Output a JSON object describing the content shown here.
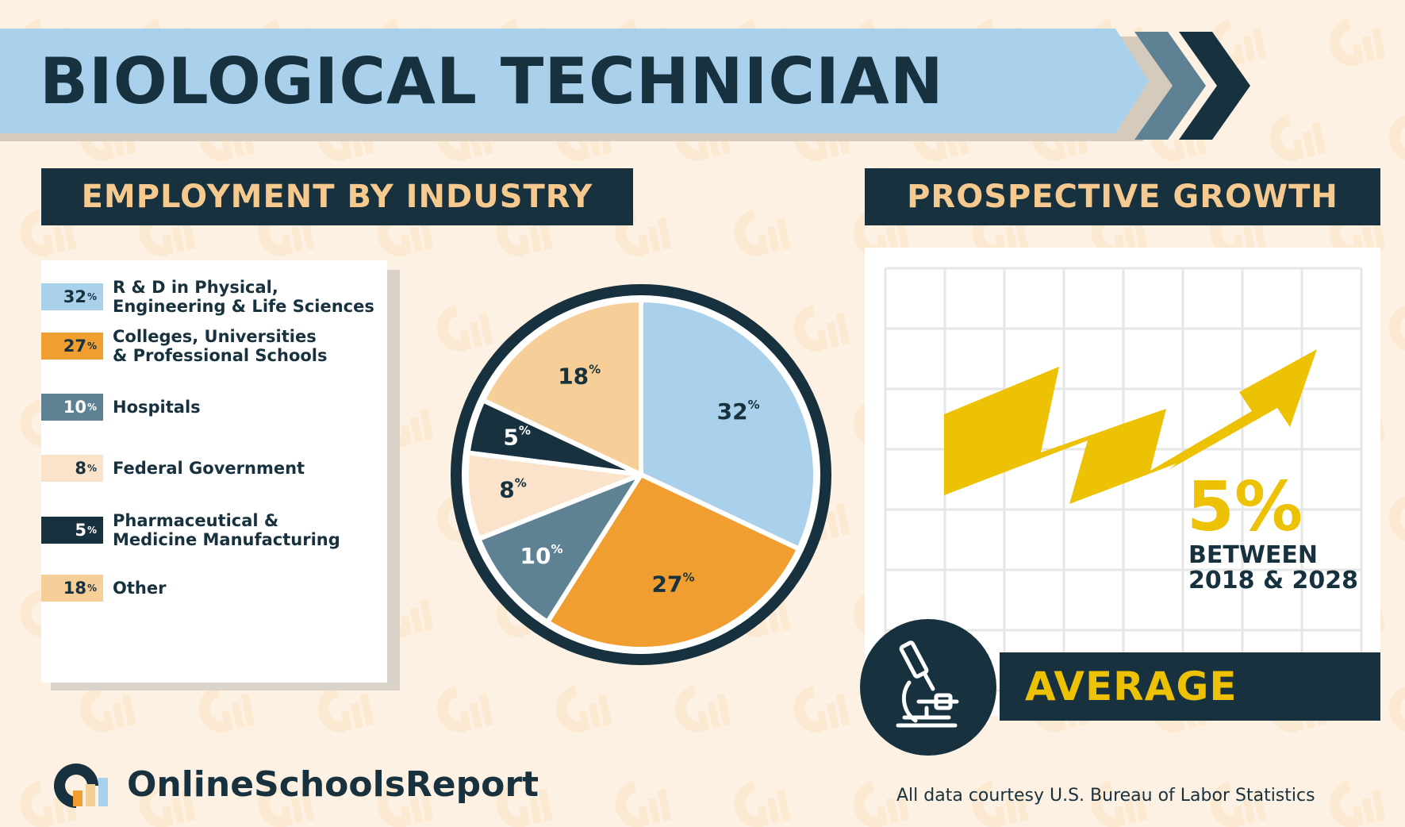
{
  "page": {
    "title": "BIOLOGICAL TECHNICIAN"
  },
  "employment": {
    "header": "EMPLOYMENT BY INDUSTRY"
  },
  "growth": {
    "header": "PROSPECTIVE GROWTH",
    "percent": "5%",
    "subtitle": "BETWEEN\n2018 & 2028",
    "rating": "AVERAGE"
  },
  "footer": {
    "brand": "OnlineSchoolsReport",
    "source": "All data courtesy U.S. Bureau of Labor Statistics"
  },
  "icons": {
    "badge": "microscope-icon",
    "brand": "online-schools-report-logo",
    "arrow": "zigzag-growth-arrow"
  },
  "colors": {
    "navy": "#17313f",
    "light_blue": "#a9d1ec",
    "orange": "#f09e2f",
    "slate": "#5e8294",
    "cream": "#fbe3cb",
    "peach": "#f6cf98",
    "yellow": "#edc104",
    "background": "#fdf1e3"
  },
  "chart_data": {
    "type": "pie",
    "slices": [
      {
        "label": "R & D in Physical,\nEngineering & Life Sciences",
        "value": 32,
        "display": "32",
        "color": "#a9d1ec",
        "text_color": "#17313f"
      },
      {
        "label": "Colleges, Universities\n& Professional Schools",
        "value": 27,
        "display": "27",
        "color": "#f09e2f",
        "text_color": "#17313f"
      },
      {
        "label": "Hospitals",
        "value": 10,
        "display": "10",
        "color": "#5e8294",
        "text_color": "#ffffff"
      },
      {
        "label": "Federal Government",
        "value": 8,
        "display": "8",
        "color": "#fbe3cb",
        "text_color": "#17313f"
      },
      {
        "label": "Pharmaceutical &\nMedicine Manufacturing",
        "value": 5,
        "display": "5",
        "color": "#17313f",
        "text_color": "#ffffff"
      },
      {
        "label": "Other",
        "value": 18,
        "display": "18",
        "color": "#f6cf98",
        "text_color": "#17313f"
      }
    ],
    "percent_suffix": "%",
    "start": "12 o'clock",
    "direction": "clockwise"
  }
}
